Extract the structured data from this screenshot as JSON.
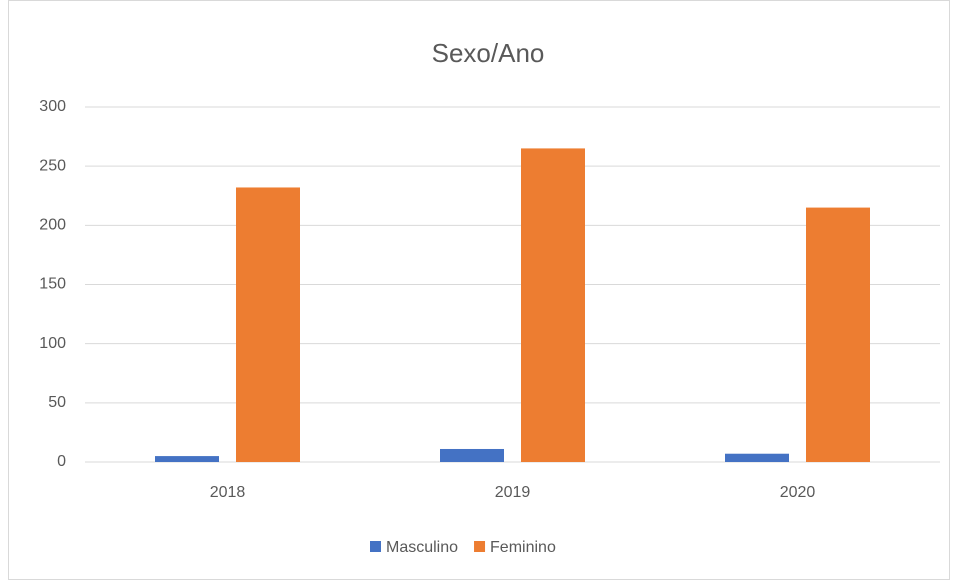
{
  "chart_data": {
    "type": "bar",
    "title": "Sexo/Ano",
    "categories": [
      "2018",
      "2019",
      "2020"
    ],
    "series": [
      {
        "name": "Masculino",
        "color": "#4472c4",
        "values": [
          5,
          11,
          7
        ]
      },
      {
        "name": "Feminino",
        "color": "#ed7d31",
        "values": [
          232,
          265,
          215
        ]
      }
    ],
    "ylim": [
      0,
      300
    ],
    "yticks": [
      0,
      50,
      100,
      150,
      200,
      250,
      300
    ],
    "grid": true,
    "legend": "bottom"
  }
}
